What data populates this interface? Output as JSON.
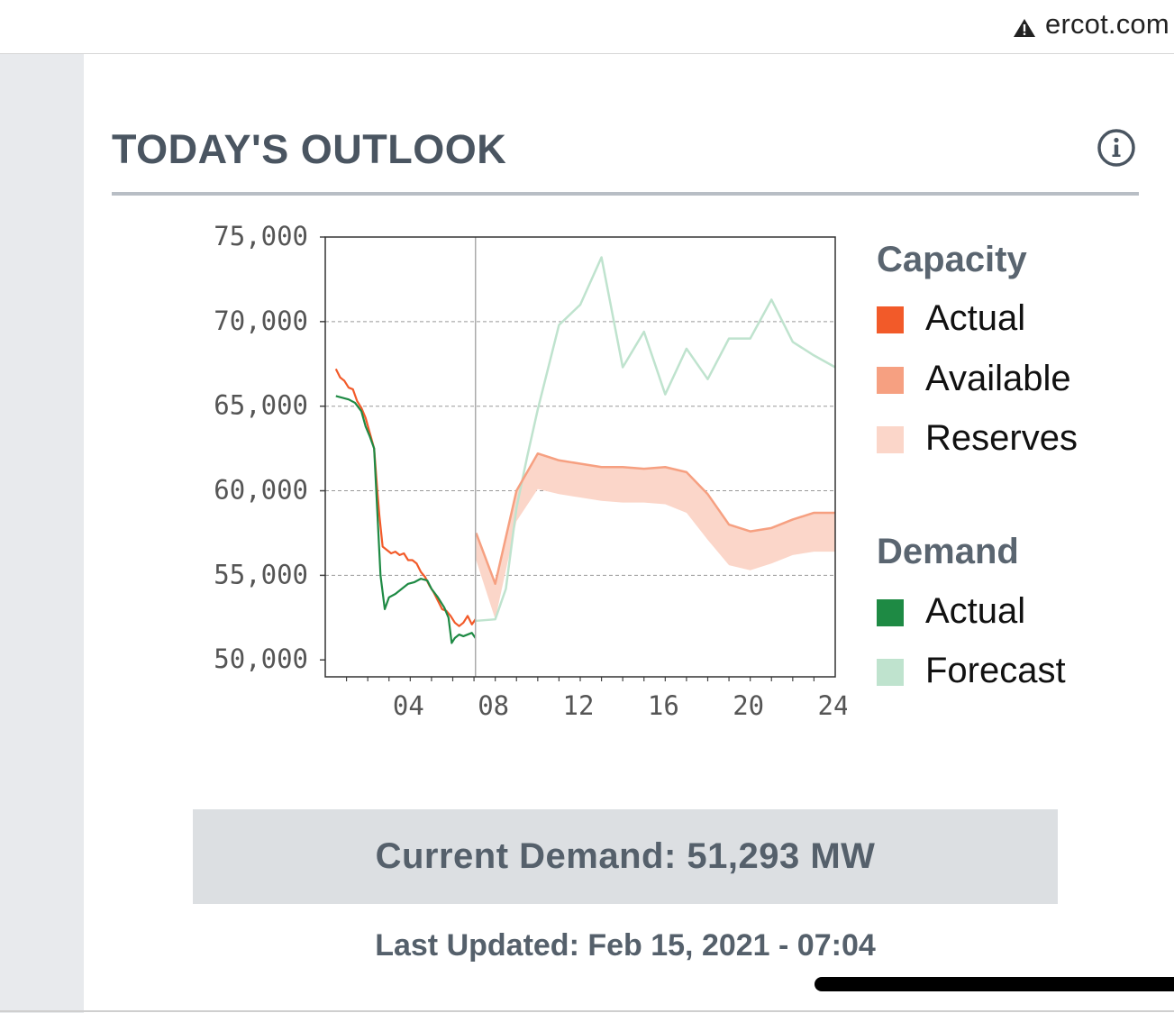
{
  "browser": {
    "url": "ercot.com"
  },
  "widget": {
    "title": "TODAY'S OUTLOOK",
    "current_demand": "Current Demand: 51,293 MW",
    "last_updated": "Last Updated: Feb 15, 2021 - 07:04"
  },
  "legend": {
    "capacity_heading": "Capacity",
    "capacity_items": [
      "Actual",
      "Available",
      "Reserves"
    ],
    "demand_heading": "Demand",
    "demand_items": [
      "Actual",
      "Forecast"
    ]
  },
  "colors": {
    "capacity_actual": "#f25a29",
    "capacity_available": "#f6a081",
    "capacity_reserves": "#fbd6c9",
    "demand_actual": "#1e8a44",
    "demand_forecast": "#bfe3ce",
    "grid": "#999999"
  },
  "chart_data": {
    "type": "line",
    "x_range": [
      0,
      24
    ],
    "x_ticks": [
      4,
      8,
      12,
      16,
      20,
      24
    ],
    "x_tick_labels": [
      "04",
      "08",
      "12",
      "16",
      "20",
      "24"
    ],
    "ylim": [
      49000,
      75000
    ],
    "y_ticks": [
      50000,
      55000,
      60000,
      65000,
      70000,
      75000
    ],
    "y_tick_labels": [
      "50,000",
      "55,000",
      "60,000",
      "65,000",
      "70,000",
      "75,000"
    ],
    "grid": "horizontal dashed",
    "current_time": 7.07,
    "series": [
      {
        "name": "Capacity Actual",
        "points": [
          [
            0.5,
            67200
          ],
          [
            0.7,
            66700
          ],
          [
            0.9,
            66500
          ],
          [
            1.1,
            66100
          ],
          [
            1.3,
            66000
          ],
          [
            1.5,
            65300
          ],
          [
            1.7,
            64900
          ],
          [
            1.9,
            64300
          ],
          [
            2.1,
            63400
          ],
          [
            2.3,
            62500
          ],
          [
            2.45,
            60000
          ],
          [
            2.55,
            58500
          ],
          [
            2.7,
            56700
          ],
          [
            2.9,
            56500
          ],
          [
            3.1,
            56300
          ],
          [
            3.3,
            56400
          ],
          [
            3.5,
            56200
          ],
          [
            3.7,
            56300
          ],
          [
            3.9,
            55900
          ],
          [
            4.1,
            55900
          ],
          [
            4.3,
            55700
          ],
          [
            4.5,
            55200
          ],
          [
            4.7,
            54900
          ],
          [
            4.9,
            54400
          ],
          [
            5.1,
            54000
          ],
          [
            5.3,
            53500
          ],
          [
            5.5,
            53000
          ],
          [
            5.7,
            52900
          ],
          [
            5.9,
            52600
          ],
          [
            6.1,
            52200
          ],
          [
            6.3,
            52000
          ],
          [
            6.5,
            52200
          ],
          [
            6.7,
            52600
          ],
          [
            6.9,
            52100
          ],
          [
            7.07,
            52400
          ]
        ]
      },
      {
        "name": "Demand Actual",
        "points": [
          [
            0.5,
            65600
          ],
          [
            0.8,
            65500
          ],
          [
            1.1,
            65400
          ],
          [
            1.4,
            65200
          ],
          [
            1.7,
            64700
          ],
          [
            1.9,
            63800
          ],
          [
            2.1,
            63200
          ],
          [
            2.3,
            62500
          ],
          [
            2.4,
            60000
          ],
          [
            2.5,
            57500
          ],
          [
            2.6,
            55000
          ],
          [
            2.7,
            54000
          ],
          [
            2.8,
            53000
          ],
          [
            3.0,
            53700
          ],
          [
            3.3,
            53900
          ],
          [
            3.6,
            54200
          ],
          [
            3.9,
            54500
          ],
          [
            4.2,
            54600
          ],
          [
            4.5,
            54800
          ],
          [
            4.8,
            54700
          ],
          [
            5.0,
            54200
          ],
          [
            5.3,
            53700
          ],
          [
            5.6,
            53100
          ],
          [
            5.8,
            52500
          ],
          [
            5.95,
            51000
          ],
          [
            6.1,
            51300
          ],
          [
            6.3,
            51500
          ],
          [
            6.5,
            51400
          ],
          [
            6.7,
            51500
          ],
          [
            6.9,
            51600
          ],
          [
            7.07,
            51293
          ]
        ]
      },
      {
        "name": "Demand Forecast",
        "points": [
          [
            7.0,
            52300
          ],
          [
            8.0,
            52400
          ],
          [
            8.5,
            54200
          ],
          [
            9.0,
            59000
          ],
          [
            9.5,
            62000
          ],
          [
            10.0,
            64800
          ],
          [
            11.0,
            69800
          ],
          [
            12.0,
            71000
          ],
          [
            13.0,
            73800
          ],
          [
            14.0,
            67300
          ],
          [
            15.0,
            69400
          ],
          [
            16.0,
            65700
          ],
          [
            17.0,
            68400
          ],
          [
            18.0,
            66600
          ],
          [
            19.0,
            69000
          ],
          [
            20.0,
            69000
          ],
          [
            21.0,
            71300
          ],
          [
            22.0,
            68800
          ],
          [
            23.0,
            68000
          ],
          [
            24.0,
            67300
          ]
        ]
      },
      {
        "name": "Available Capacity",
        "points": [
          [
            7.1,
            57500
          ],
          [
            8.0,
            54500
          ],
          [
            9.0,
            60000
          ],
          [
            10.0,
            62200
          ],
          [
            11.0,
            61800
          ],
          [
            12.0,
            61600
          ],
          [
            13.0,
            61400
          ],
          [
            14.0,
            61400
          ],
          [
            15.0,
            61300
          ],
          [
            16.0,
            61400
          ],
          [
            17.0,
            61100
          ],
          [
            18.0,
            59800
          ],
          [
            19.0,
            58000
          ],
          [
            20.0,
            57600
          ],
          [
            21.0,
            57800
          ],
          [
            22.0,
            58300
          ],
          [
            23.0,
            58700
          ],
          [
            24.0,
            58700
          ]
        ]
      },
      {
        "name": "Reserves Lower Bound",
        "points": [
          [
            7.1,
            55900
          ],
          [
            8.0,
            52400
          ],
          [
            9.0,
            58200
          ],
          [
            10.0,
            60100
          ],
          [
            11.0,
            59800
          ],
          [
            12.0,
            59600
          ],
          [
            13.0,
            59400
          ],
          [
            14.0,
            59300
          ],
          [
            15.0,
            59300
          ],
          [
            16.0,
            59200
          ],
          [
            17.0,
            58700
          ],
          [
            18.0,
            57100
          ],
          [
            19.0,
            55600
          ],
          [
            20.0,
            55300
          ],
          [
            21.0,
            55700
          ],
          [
            22.0,
            56200
          ],
          [
            23.0,
            56400
          ],
          [
            24.0,
            56400
          ]
        ]
      }
    ]
  }
}
